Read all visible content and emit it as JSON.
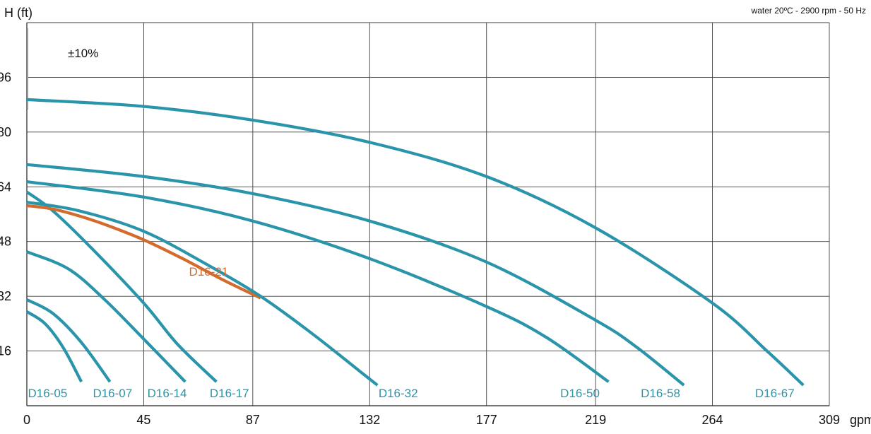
{
  "chart_data": {
    "type": "line",
    "title": "",
    "conditions": "water 20ºC - 2900 rpm - 50 Hz",
    "tolerance": "±10%",
    "ylabel": "H (ft)",
    "xlabel": "",
    "x_unit": "gpm",
    "x_ticks": [
      {
        "value": 0,
        "label": "0"
      },
      {
        "value": 45,
        "label": "45"
      },
      {
        "value": 87,
        "label": "87"
      },
      {
        "value": 132,
        "label": "132"
      },
      {
        "value": 177,
        "label": "177"
      },
      {
        "value": 219,
        "label": "219"
      },
      {
        "value": 264,
        "label": "264"
      },
      {
        "value": 309,
        "label": "309"
      }
    ],
    "y_ticks": [
      {
        "value": 16,
        "label": "16"
      },
      {
        "value": 32,
        "label": "32"
      },
      {
        "value": 48,
        "label": "48"
      },
      {
        "value": 64,
        "label": "64"
      },
      {
        "value": 80,
        "label": "80"
      },
      {
        "value": 96,
        "label": "96"
      }
    ],
    "xlim": [
      0,
      309
    ],
    "ylim": [
      0,
      112
    ],
    "grid": true,
    "legend": "none",
    "colors": {
      "series_default": "#2a95aa",
      "series_highlight": "#d46a2c",
      "grid": "#404040",
      "text": "#111111"
    },
    "series": [
      {
        "name": "D16-05",
        "color": "#2a95aa",
        "label_at": 8,
        "points": [
          [
            0,
            27.5
          ],
          [
            7,
            24
          ],
          [
            14,
            17
          ],
          [
            21,
            7
          ]
        ]
      },
      {
        "name": "D16-07",
        "color": "#2a95aa",
        "label_at": 33,
        "points": [
          [
            0,
            31
          ],
          [
            10,
            27
          ],
          [
            21,
            18.5
          ],
          [
            32,
            7
          ]
        ]
      },
      {
        "name": "D16-14",
        "color": "#2a95aa",
        "label_at": 54,
        "points": [
          [
            0,
            45
          ],
          [
            16,
            40
          ],
          [
            30,
            31
          ],
          [
            45,
            19.5
          ],
          [
            61,
            7
          ]
        ]
      },
      {
        "name": "D16-17",
        "color": "#2a95aa",
        "label_at": 78,
        "points": [
          [
            0,
            62.5
          ],
          [
            10,
            57
          ],
          [
            25,
            46
          ],
          [
            45,
            30
          ],
          [
            58,
            18
          ],
          [
            73,
            7
          ]
        ]
      },
      {
        "name": "D16-21",
        "color": "#d46a2c",
        "label_at": 70,
        "label_y": 38,
        "points": [
          [
            0,
            58.5
          ],
          [
            10,
            57.5
          ],
          [
            20,
            55.5
          ],
          [
            30,
            53
          ],
          [
            45,
            48.5
          ],
          [
            60,
            43
          ],
          [
            75,
            37
          ],
          [
            90,
            31.5
          ]
        ]
      },
      {
        "name": "D16-32",
        "color": "#2a95aa",
        "label_at": 143,
        "points": [
          [
            0,
            59.5
          ],
          [
            20,
            57
          ],
          [
            45,
            51
          ],
          [
            70,
            41
          ],
          [
            90,
            32
          ],
          [
            110,
            21
          ],
          [
            130,
            9
          ],
          [
            135,
            6
          ]
        ]
      },
      {
        "name": "D16-50",
        "color": "#2a95aa",
        "label_at": 213,
        "points": [
          [
            0,
            65.5
          ],
          [
            45,
            61
          ],
          [
            87,
            54
          ],
          [
            132,
            43
          ],
          [
            177,
            29
          ],
          [
            200,
            20
          ],
          [
            224,
            7
          ]
        ]
      },
      {
        "name": "D16-58",
        "color": "#2a95aa",
        "label_at": 244,
        "points": [
          [
            0,
            70.5
          ],
          [
            45,
            67
          ],
          [
            87,
            62
          ],
          [
            132,
            54
          ],
          [
            177,
            42
          ],
          [
            219,
            25
          ],
          [
            235,
            17
          ],
          [
            253,
            6
          ]
        ]
      },
      {
        "name": "D16-67",
        "color": "#2a95aa",
        "label_at": 288,
        "points": [
          [
            0,
            89.5
          ],
          [
            45,
            87.5
          ],
          [
            87,
            83.5
          ],
          [
            132,
            77
          ],
          [
            177,
            67
          ],
          [
            219,
            52
          ],
          [
            264,
            30
          ],
          [
            285,
            16
          ],
          [
            299,
            6
          ]
        ]
      }
    ]
  }
}
